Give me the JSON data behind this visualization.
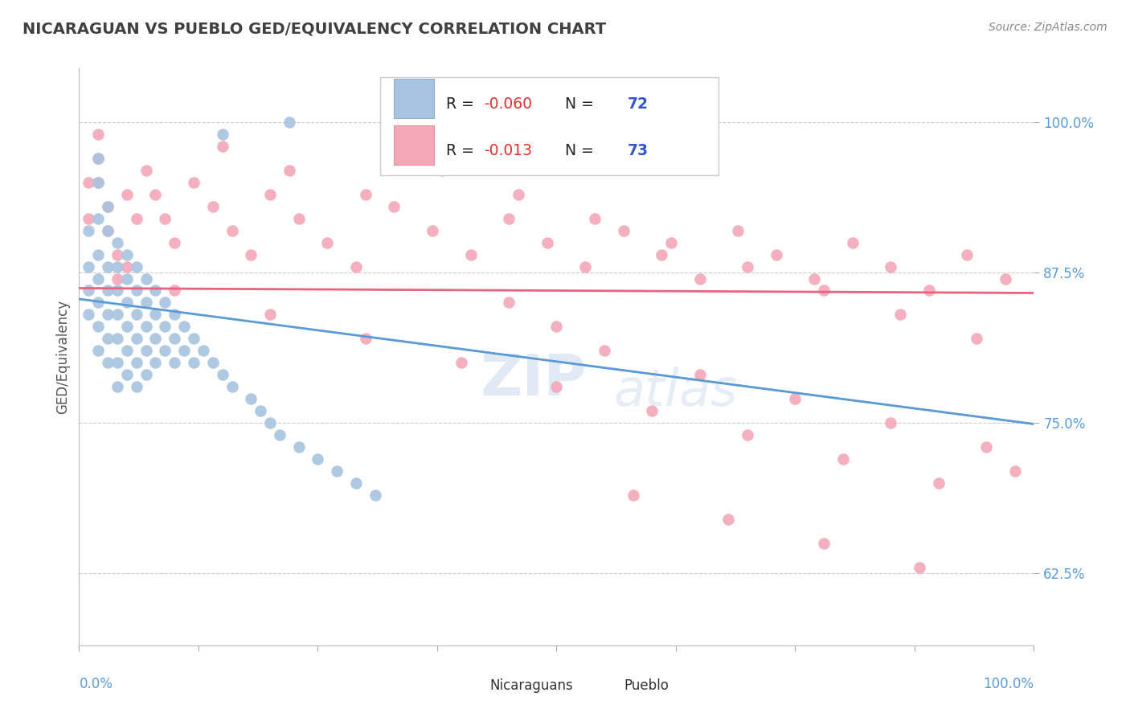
{
  "title": "NICARAGUAN VS PUEBLO GED/EQUIVALENCY CORRELATION CHART",
  "source": "Source: ZipAtlas.com",
  "ylabel": "GED/Equivalency",
  "yticks": [
    0.625,
    0.75,
    0.875,
    1.0
  ],
  "ytick_labels": [
    "62.5%",
    "75.0%",
    "87.5%",
    "100.0%"
  ],
  "xlim": [
    0.0,
    1.0
  ],
  "ylim": [
    0.565,
    1.045
  ],
  "legend_blue_r": "-0.060",
  "legend_blue_n": "72",
  "legend_pink_r": "-0.013",
  "legend_pink_n": "73",
  "blue_color": "#a8c4e0",
  "pink_color": "#f4a8b8",
  "blue_line_color": "#5b9bd5",
  "pink_line_color": "#e8637d",
  "grid_color": "#cccccc",
  "title_color": "#404040",
  "axis_label_color": "#5b9bd5",
  "blue_trend_y_start": 0.853,
  "blue_trend_y_end": 0.749,
  "pink_trend_y_start": 0.862,
  "pink_trend_y_end": 0.858,
  "watermark_text": "ZIPatlas",
  "blue_scatter_x": [
    0.01,
    0.01,
    0.01,
    0.01,
    0.02,
    0.02,
    0.02,
    0.02,
    0.02,
    0.02,
    0.02,
    0.02,
    0.03,
    0.03,
    0.03,
    0.03,
    0.03,
    0.03,
    0.03,
    0.04,
    0.04,
    0.04,
    0.04,
    0.04,
    0.04,
    0.04,
    0.05,
    0.05,
    0.05,
    0.05,
    0.05,
    0.05,
    0.06,
    0.06,
    0.06,
    0.06,
    0.06,
    0.06,
    0.07,
    0.07,
    0.07,
    0.07,
    0.07,
    0.08,
    0.08,
    0.08,
    0.08,
    0.09,
    0.09,
    0.09,
    0.1,
    0.1,
    0.1,
    0.11,
    0.11,
    0.12,
    0.12,
    0.13,
    0.14,
    0.15,
    0.16,
    0.18,
    0.19,
    0.2,
    0.21,
    0.23,
    0.25,
    0.27,
    0.29,
    0.31,
    0.15,
    0.22
  ],
  "blue_scatter_y": [
    0.91,
    0.88,
    0.86,
    0.84,
    0.97,
    0.95,
    0.92,
    0.89,
    0.87,
    0.85,
    0.83,
    0.81,
    0.93,
    0.91,
    0.88,
    0.86,
    0.84,
    0.82,
    0.8,
    0.9,
    0.88,
    0.86,
    0.84,
    0.82,
    0.8,
    0.78,
    0.89,
    0.87,
    0.85,
    0.83,
    0.81,
    0.79,
    0.88,
    0.86,
    0.84,
    0.82,
    0.8,
    0.78,
    0.87,
    0.85,
    0.83,
    0.81,
    0.79,
    0.86,
    0.84,
    0.82,
    0.8,
    0.85,
    0.83,
    0.81,
    0.84,
    0.82,
    0.8,
    0.83,
    0.81,
    0.82,
    0.8,
    0.81,
    0.8,
    0.79,
    0.78,
    0.77,
    0.76,
    0.75,
    0.74,
    0.73,
    0.72,
    0.71,
    0.7,
    0.69,
    0.99,
    1.0
  ],
  "pink_scatter_x": [
    0.01,
    0.01,
    0.02,
    0.02,
    0.02,
    0.03,
    0.03,
    0.04,
    0.04,
    0.05,
    0.06,
    0.07,
    0.08,
    0.09,
    0.1,
    0.12,
    0.14,
    0.16,
    0.18,
    0.2,
    0.23,
    0.26,
    0.29,
    0.33,
    0.37,
    0.41,
    0.45,
    0.49,
    0.53,
    0.57,
    0.61,
    0.65,
    0.69,
    0.73,
    0.77,
    0.81,
    0.85,
    0.89,
    0.93,
    0.97,
    0.15,
    0.22,
    0.3,
    0.38,
    0.46,
    0.54,
    0.62,
    0.7,
    0.78,
    0.86,
    0.94,
    0.05,
    0.1,
    0.2,
    0.3,
    0.4,
    0.5,
    0.6,
    0.7,
    0.8,
    0.9,
    0.5,
    0.55,
    0.45,
    0.65,
    0.75,
    0.85,
    0.95,
    0.98,
    0.88,
    0.78,
    0.68,
    0.58
  ],
  "pink_scatter_y": [
    0.95,
    0.92,
    0.99,
    0.97,
    0.95,
    0.93,
    0.91,
    0.89,
    0.87,
    0.94,
    0.92,
    0.96,
    0.94,
    0.92,
    0.9,
    0.95,
    0.93,
    0.91,
    0.89,
    0.94,
    0.92,
    0.9,
    0.88,
    0.93,
    0.91,
    0.89,
    0.92,
    0.9,
    0.88,
    0.91,
    0.89,
    0.87,
    0.91,
    0.89,
    0.87,
    0.9,
    0.88,
    0.86,
    0.89,
    0.87,
    0.98,
    0.96,
    0.94,
    0.96,
    0.94,
    0.92,
    0.9,
    0.88,
    0.86,
    0.84,
    0.82,
    0.88,
    0.86,
    0.84,
    0.82,
    0.8,
    0.78,
    0.76,
    0.74,
    0.72,
    0.7,
    0.83,
    0.81,
    0.85,
    0.79,
    0.77,
    0.75,
    0.73,
    0.71,
    0.63,
    0.65,
    0.67,
    0.69
  ]
}
